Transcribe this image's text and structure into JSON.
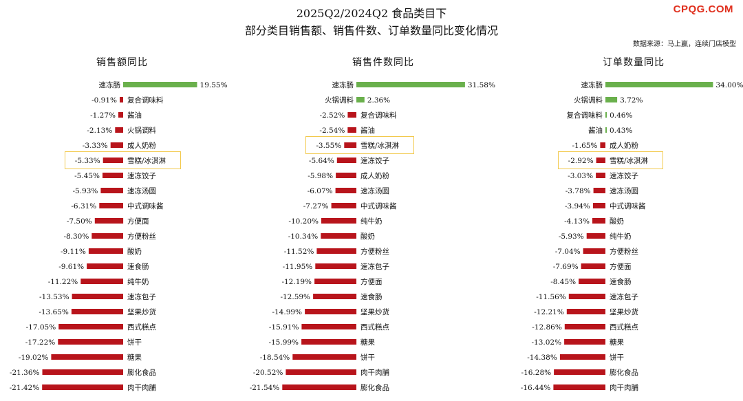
{
  "header": {
    "title_line1": "2025Q2/2024Q2 食品类目下",
    "title_line2": "部分类目销售额、销售件数、订单数量同比变化情况",
    "watermark": "CPQG.COM",
    "source": "数据来源：马上赢，连续门店模型"
  },
  "colors": {
    "positive": "#6ab04c",
    "negative": "#b8141b",
    "highlight": "#f2c94c"
  },
  "chart_data": [
    {
      "type": "bar",
      "title": "销售额同比",
      "highlight_category": "雪糕/冰淇淋",
      "categories": [
        "速冻肠",
        "复合调味料",
        "酱油",
        "火锅调料",
        "成人奶粉",
        "雪糕/冰淇淋",
        "速冻饺子",
        "速冻汤圆",
        "中式调味酱",
        "方便面",
        "方便粉丝",
        "酸奶",
        "速食肠",
        "纯牛奶",
        "速冻包子",
        "坚果炒货",
        "西式糕点",
        "饼干",
        "糖果",
        "膨化食品",
        "肉干肉脯"
      ],
      "values": [
        19.55,
        -0.91,
        -1.27,
        -2.13,
        -3.33,
        -5.33,
        -5.45,
        -5.93,
        -6.31,
        -7.5,
        -8.3,
        -9.11,
        -9.61,
        -11.22,
        -13.53,
        -13.65,
        -17.05,
        -17.22,
        -19.02,
        -21.36,
        -21.42
      ],
      "value_labels": [
        "19.55%",
        "-0.91%",
        "-1.27%",
        "-2.13%",
        "-3.33%",
        "-5.33%",
        "-5.45%",
        "-5.93%",
        "-6.31%",
        "-7.50%",
        "-8.30%",
        "-9.11%",
        "-9.61%",
        "-11.22%",
        "-13.53%",
        "-13.65%",
        "-17.05%",
        "-17.22%",
        "-19.02%",
        "-21.36%",
        "-21.42%"
      ]
    },
    {
      "type": "bar",
      "title": "销售件数同比",
      "highlight_category": "雪糕/冰淇淋",
      "categories": [
        "速冻肠",
        "火锅调料",
        "复合调味料",
        "酱油",
        "雪糕/冰淇淋",
        "速冻饺子",
        "成人奶粉",
        "速冻汤圆",
        "中式调味酱",
        "纯牛奶",
        "酸奶",
        "方便粉丝",
        "速冻包子",
        "方便面",
        "速食肠",
        "坚果炒货",
        "西式糕点",
        "糖果",
        "饼干",
        "肉干肉脯",
        "膨化食品"
      ],
      "values": [
        31.58,
        2.36,
        -2.52,
        -2.54,
        -3.55,
        -5.64,
        -5.98,
        -6.07,
        -7.27,
        -10.2,
        -10.34,
        -11.52,
        -11.95,
        -12.19,
        -12.59,
        -14.99,
        -15.91,
        -15.99,
        -18.54,
        -20.52,
        -21.54
      ],
      "value_labels": [
        "31.58%",
        "2.36%",
        "-2.52%",
        "-2.54%",
        "-3.55%",
        "-5.64%",
        "-5.98%",
        "-6.07%",
        "-7.27%",
        "-10.20%",
        "-10.34%",
        "-11.52%",
        "-11.95%",
        "-12.19%",
        "-12.59%",
        "-14.99%",
        "-15.91%",
        "-15.99%",
        "-18.54%",
        "-20.52%",
        "-21.54%"
      ]
    },
    {
      "type": "bar",
      "title": "订单数量同比",
      "highlight_category": "雪糕/冰淇淋",
      "categories": [
        "速冻肠",
        "火锅调料",
        "复合调味料",
        "酱油",
        "成人奶粉",
        "雪糕/冰淇淋",
        "速冻饺子",
        "速冻汤圆",
        "中式调味酱",
        "酸奶",
        "纯牛奶",
        "方便粉丝",
        "方便面",
        "速食肠",
        "速冻包子",
        "坚果炒货",
        "西式糕点",
        "糖果",
        "饼干",
        "膨化食品",
        "肉干肉脯"
      ],
      "values": [
        34.0,
        3.72,
        0.46,
        0.43,
        -1.65,
        -2.92,
        -3.03,
        -3.78,
        -3.94,
        -4.13,
        -5.93,
        -7.04,
        -7.69,
        -8.45,
        -11.56,
        -12.21,
        -12.86,
        -13.02,
        -14.38,
        -16.28,
        -16.44
      ],
      "value_labels": [
        "34.00%",
        "3.72%",
        "0.46%",
        "0.43%",
        "-1.65%",
        "-2.92%",
        "-3.03%",
        "-3.78%",
        "-3.94%",
        "-4.13%",
        "-5.93%",
        "-7.04%",
        "-7.69%",
        "-8.45%",
        "-11.56%",
        "-12.21%",
        "-12.86%",
        "-13.02%",
        "-14.38%",
        "-16.28%",
        "-16.44%"
      ]
    }
  ]
}
